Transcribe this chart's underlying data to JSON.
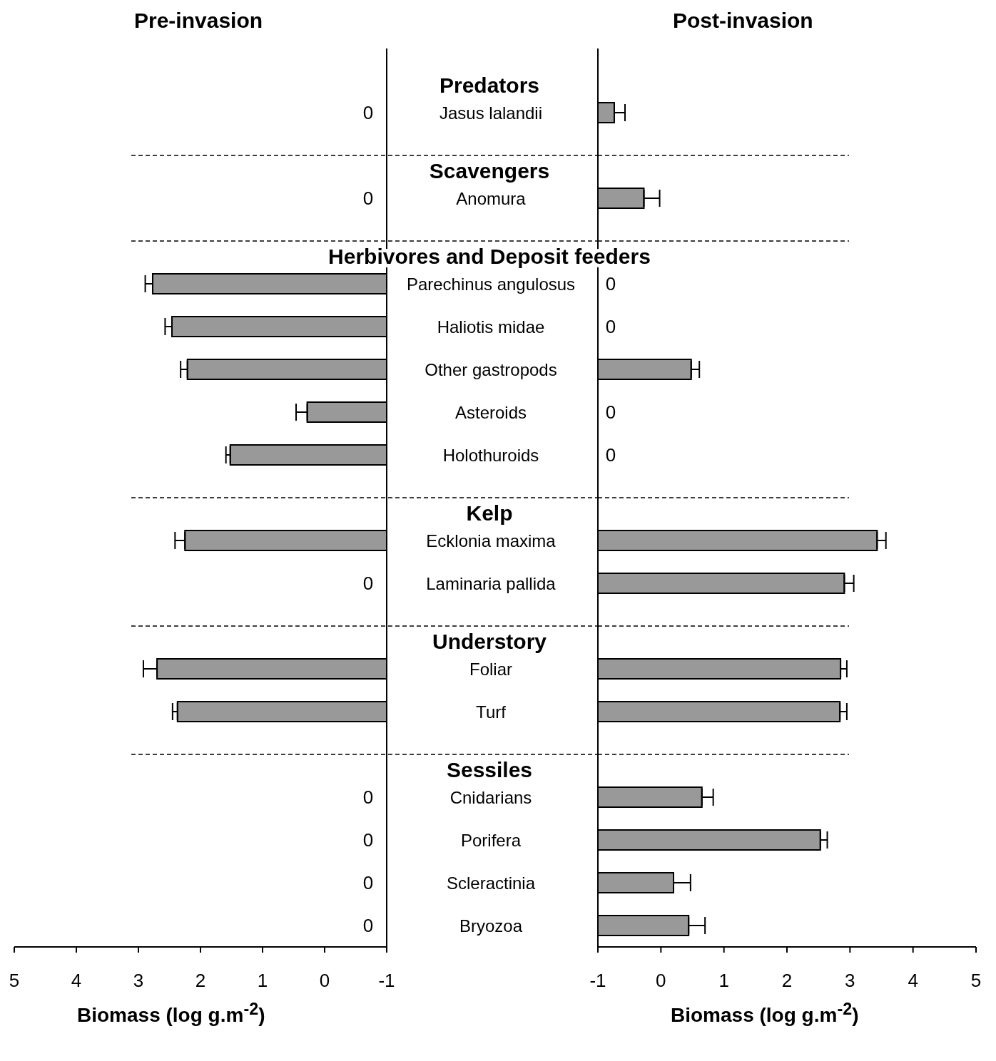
{
  "chart_data": [
    {
      "type": "bar",
      "orientation": "horizontal",
      "title": "Pre-invasion",
      "xlabel": "Biomass (log g.m$^{-2}$)",
      "categories": [
        "Predators",
        "Jasus lalandii",
        "Scavengers",
        "Anomura",
        "Herbivores and Deposit feeders",
        "Parechinus angulosus",
        "Haliotis midae",
        "Other gastropods",
        "Asteroids",
        "Holothuroids",
        "Kelp",
        "Ecklonia maxima",
        "Laminaria pallida",
        "Understory",
        "Foliar",
        "Turf",
        "Sessiles",
        "Cnidarians",
        "Porifera",
        "Scleractinia",
        "Bryozoa"
      ],
      "base": [
        null,
        null,
        null,
        null,
        null,
        -1,
        -1,
        -1,
        -1,
        -1,
        null,
        -1,
        null,
        null,
        -1,
        -1,
        null,
        null,
        null,
        null,
        null
      ],
      "values": [
        null,
        null,
        null,
        null,
        null,
        3.77,
        3.46,
        3.21,
        1.28,
        2.52,
        null,
        3.25,
        null,
        null,
        3.7,
        3.37,
        null,
        null,
        null,
        null,
        null
      ],
      "errors": [
        null,
        null,
        null,
        null,
        null,
        [
          2.77,
          2.89
        ],
        [
          2.46,
          2.57
        ],
        [
          2.21,
          2.32
        ],
        [
          0.28,
          0.46
        ],
        [
          1.52,
          1.59
        ],
        null,
        [
          2.25,
          2.41
        ],
        null,
        null,
        [
          2.7,
          2.92
        ],
        [
          2.37,
          2.45
        ],
        null,
        null,
        null,
        null,
        null
      ],
      "value_labels": [
        null,
        "0",
        null,
        "0",
        null,
        null,
        null,
        null,
        null,
        null,
        null,
        null,
        "0",
        null,
        null,
        null,
        null,
        "0",
        "0",
        "0",
        "0"
      ],
      "color": "#999999",
      "xlim": [
        5,
        -1
      ],
      "xticks": [
        5,
        4,
        3,
        2,
        1,
        0,
        -1
      ],
      "grid": false,
      "legend": false,
      "ref_lines": [
        {
          "axis": "y",
          "value": "Scavengers",
          "line_style": "dashed"
        },
        {
          "axis": "y",
          "value": "Herbivores and Deposit feeders",
          "line_style": "dashed"
        },
        {
          "axis": "y",
          "value": "Kelp",
          "line_style": "dashed"
        },
        {
          "axis": "y",
          "value": "Understory",
          "line_style": "dashed"
        },
        {
          "axis": "y",
          "value": "Sessiles",
          "line_style": "dashed"
        }
      ]
    },
    {
      "type": "bar",
      "orientation": "horizontal",
      "title": "Post-invasion",
      "xlabel": "Biomass (log g.m$^{-2}$)",
      "categories": [
        "Predators",
        "Jasus lalandii",
        "Scavengers",
        "Anomura",
        "Herbivores and Deposit feeders",
        "Parechinus angulosus",
        "Haliotis midae",
        "Other gastropods",
        "Asteroids",
        "Holothuroids",
        "Kelp",
        "Ecklonia maxima",
        "Laminaria pallida",
        "Understory",
        "Foliar",
        "Turf",
        "Sessiles",
        "Cnidarians",
        "Porifera",
        "Scleractinia",
        "Bryozoa"
      ],
      "base": [
        null,
        -1,
        null,
        -1,
        null,
        null,
        null,
        -1,
        null,
        null,
        null,
        -1,
        -1,
        null,
        -1,
        -1,
        null,
        -1,
        -1,
        -1,
        -1
      ],
      "values": [
        null,
        0.26,
        null,
        0.73,
        null,
        null,
        null,
        1.48,
        null,
        null,
        null,
        4.43,
        3.91,
        null,
        3.85,
        3.84,
        null,
        1.65,
        3.53,
        1.2,
        1.44
      ],
      "errors": [
        null,
        [
          -0.74,
          -0.57
        ],
        null,
        [
          -0.27,
          -0.02
        ],
        null,
        null,
        null,
        [
          0.48,
          0.61
        ],
        null,
        null,
        null,
        [
          3.43,
          3.57
        ],
        [
          2.91,
          3.06
        ],
        null,
        [
          2.85,
          2.95
        ],
        [
          2.84,
          2.95
        ],
        null,
        [
          0.65,
          0.83
        ],
        [
          2.53,
          2.64
        ],
        [
          0.2,
          0.47
        ],
        [
          0.44,
          0.7
        ]
      ],
      "value_labels": [
        null,
        null,
        null,
        null,
        null,
        "0",
        "0",
        null,
        "0",
        "0",
        null,
        null,
        null,
        null,
        null,
        null,
        null,
        null,
        null,
        null,
        null
      ],
      "color": "#999999",
      "xlim": [
        -1,
        5
      ],
      "xticks": [
        -1,
        0,
        1,
        2,
        3,
        4,
        5
      ],
      "grid": false,
      "legend": false,
      "tick_labels": "x",
      "ref_lines": [
        {
          "axis": "y",
          "value": "Scavengers",
          "line_style": "dashed"
        },
        {
          "axis": "y",
          "value": "Herbivores and Deposit feeders",
          "line_style": "dashed"
        },
        {
          "axis": "y",
          "value": "Kelp",
          "line_style": "dashed"
        },
        {
          "axis": "y",
          "value": "Understory",
          "line_style": "dashed"
        },
        {
          "axis": "y",
          "value": "Sessiles",
          "line_style": "dashed"
        }
      ]
    }
  ]
}
